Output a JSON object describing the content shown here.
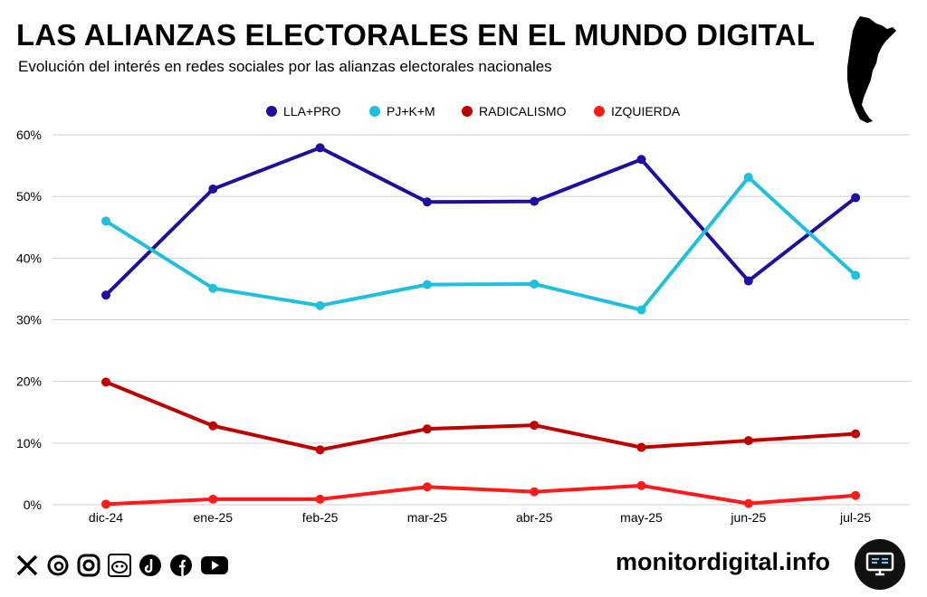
{
  "header": {
    "title": "LAS ALIANZAS ELECTORALES EN EL MUNDO DIGITAL",
    "subtitle": "Evolución del interés en redes sociales por las alianzas electorales nacionales"
  },
  "chart_data": {
    "type": "line",
    "categories": [
      "dic-24",
      "ene-25",
      "feb-25",
      "mar-25",
      "abr-25",
      "may-25",
      "jun-25",
      "jul-25"
    ],
    "series": [
      {
        "name": "LLA+PRO",
        "color": "#1f0f9e",
        "values": [
          34,
          51.2,
          57.9,
          49.1,
          49.2,
          56,
          36.3,
          49.8
        ]
      },
      {
        "name": "PJ+K+M",
        "color": "#1fc0de",
        "values": [
          46,
          35.1,
          32.3,
          35.7,
          35.8,
          31.6,
          53.1,
          37.2
        ]
      },
      {
        "name": "RADICALISMO",
        "color": "#c00000",
        "values": [
          19.9,
          12.8,
          8.9,
          12.3,
          12.9,
          9.3,
          10.4,
          11.5
        ]
      },
      {
        "name": "IZQUIERDA",
        "color": "#ff1a1a",
        "values": [
          0.1,
          0.9,
          0.9,
          2.9,
          2.1,
          3.1,
          0.2,
          1.5
        ]
      }
    ],
    "yticks": [
      "0%",
      "10%",
      "20%",
      "30%",
      "40%",
      "50%",
      "60%"
    ],
    "ylim": [
      0,
      60
    ],
    "grid": true,
    "legend": "top-center"
  },
  "footer": {
    "icons": [
      "x-icon",
      "threads-icon",
      "instagram-icon",
      "reddit-icon",
      "tiktok-icon",
      "facebook-icon",
      "youtube-icon"
    ],
    "brand": "monitordigital.info",
    "badge_icon": "monitor-icon"
  }
}
